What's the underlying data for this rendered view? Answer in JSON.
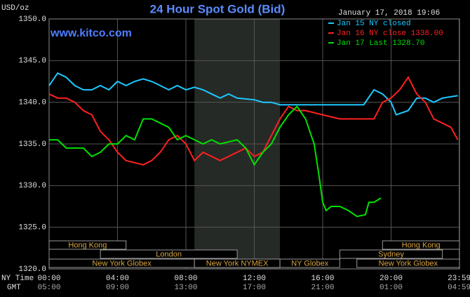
{
  "chart_data": {
    "type": "line",
    "title": "24 Hour Spot Gold (Bid)",
    "website": "www.kitco.com",
    "ylabel": "USD/oz",
    "timestamp": "January 17, 2018 19:06",
    "xlim": [
      0,
      24
    ],
    "ylim": [
      1320,
      1350
    ],
    "yticks": [
      {
        "value": 1320,
        "label": "1320.0"
      },
      {
        "value": 1325,
        "label": "1325.0"
      },
      {
        "value": 1330,
        "label": "1330.0"
      },
      {
        "value": 1335,
        "label": "1335.0"
      },
      {
        "value": 1340,
        "label": "1340.0"
      },
      {
        "value": 1345,
        "label": "1345.0"
      },
      {
        "value": 1350,
        "label": "1350.0"
      }
    ],
    "xticks": [
      {
        "value": 0,
        "label": "00:00"
      },
      {
        "value": 4,
        "label": "04:00"
      },
      {
        "value": 8,
        "label": "08:00"
      },
      {
        "value": 12,
        "label": "12:00"
      },
      {
        "value": 16,
        "label": "16:00"
      },
      {
        "value": 20,
        "label": "20:00"
      },
      {
        "value": 23.983,
        "label": "23:59"
      }
    ],
    "xtick_label_row": "NY Time",
    "gmt_row": "GMT",
    "gmt_labels": [
      "05:00",
      "09:00",
      "13:00",
      "17:00",
      "21:00",
      "01:00",
      "04:59"
    ],
    "grid": true,
    "series": [
      {
        "name": "Jan 15 NY closed",
        "color": "#1ec8ff",
        "x": [
          0,
          0.5,
          1,
          1.5,
          2,
          2.5,
          3,
          3.5,
          4,
          4.5,
          5,
          5.5,
          6,
          6.5,
          7,
          7.5,
          8,
          8.5,
          9,
          9.5,
          10,
          10.5,
          11,
          12,
          12.5,
          13,
          13.5,
          15,
          17,
          18.4,
          19,
          19.5,
          20,
          20.3,
          21,
          21.5,
          22,
          22.5,
          23,
          23.9
        ],
        "values": [
          1342,
          1343.5,
          1343,
          1342,
          1341.5,
          1341.5,
          1342,
          1341.5,
          1342.5,
          1342,
          1342.5,
          1342.8,
          1342.5,
          1342,
          1341.5,
          1342,
          1341.5,
          1341.8,
          1341.5,
          1341,
          1340.5,
          1341,
          1340.5,
          1340.3,
          1340,
          1340,
          1339.7,
          1339.7,
          1339.7,
          1339.7,
          1341.5,
          1341,
          1340,
          1338.5,
          1339,
          1340.5,
          1340.5,
          1340,
          1340.5,
          1340.8
        ]
      },
      {
        "name": "Jan 16 NY close 1338.00",
        "color": "#ff2020",
        "x": [
          0,
          0.5,
          1,
          1.5,
          2,
          2.5,
          3,
          3.5,
          4,
          4.5,
          5.5,
          6,
          6.5,
          7,
          7.5,
          8,
          8.5,
          9,
          10,
          11,
          11.5,
          12,
          12.5,
          13,
          13.5,
          14,
          14.5,
          15,
          16,
          17,
          18,
          19,
          19.5,
          20,
          20.5,
          21,
          21.5,
          22,
          22.5,
          23,
          23.5,
          23.9
        ],
        "values": [
          1341,
          1340.5,
          1340.5,
          1340,
          1339,
          1338.5,
          1336.5,
          1335.5,
          1334,
          1333,
          1332.5,
          1333,
          1334,
          1335.5,
          1336,
          1335,
          1333,
          1334,
          1333,
          1334,
          1334.5,
          1333.5,
          1334,
          1336,
          1338,
          1339.5,
          1339,
          1339,
          1338.5,
          1338,
          1338,
          1338,
          1340,
          1340.5,
          1341.5,
          1343,
          1341,
          1340,
          1338,
          1337.5,
          1337,
          1335.5
        ]
      },
      {
        "name": "Jan 17 Last 1328.70",
        "color": "#00e000",
        "x": [
          0,
          0.5,
          1,
          1.5,
          2,
          2.5,
          3,
          3.5,
          4,
          4.5,
          5,
          5.5,
          6,
          6.5,
          7,
          7.5,
          8,
          9,
          9.5,
          10,
          11,
          11.5,
          12,
          12.5,
          13,
          13.5,
          14,
          14.5,
          15,
          15.5,
          15.8,
          16,
          16.2,
          16.5,
          17,
          17.5,
          18,
          18.5,
          18.7,
          19,
          19.4
        ],
        "values": [
          1335.5,
          1335.5,
          1334.5,
          1334.5,
          1334.5,
          1333.5,
          1334,
          1335,
          1335,
          1336,
          1335.5,
          1338,
          1338,
          1337.5,
          1337,
          1335.5,
          1336,
          1335,
          1335.5,
          1335,
          1335.5,
          1334.5,
          1332.5,
          1334,
          1335,
          1337,
          1338.5,
          1339.5,
          1338,
          1335,
          1331,
          1328,
          1327,
          1327.5,
          1327.5,
          1327,
          1326.3,
          1326.5,
          1328,
          1328,
          1328.5
        ]
      }
    ],
    "sessions": [
      {
        "name": "Hong Kong",
        "row": 0,
        "start": 0,
        "end": 4.5
      },
      {
        "name": "Hong Kong",
        "row": 0,
        "start": 19.5,
        "end": 24
      },
      {
        "name": "London",
        "row": 1,
        "start": 3,
        "end": 11
      },
      {
        "name": "Sydney",
        "row": 1,
        "start": 17,
        "end": 23
      },
      {
        "name": "New York Globex",
        "row": 2,
        "start": 0,
        "end": 8.5
      },
      {
        "name": "New York NYMEX",
        "row": 2,
        "start": 8.5,
        "end": 13.5
      },
      {
        "name": "NY Globex",
        "row": 2,
        "start": 13.5,
        "end": 17
      },
      {
        "name": "New York Globex",
        "row": 2,
        "start": 18,
        "end": 24
      }
    ],
    "highlight_session": 5
  }
}
